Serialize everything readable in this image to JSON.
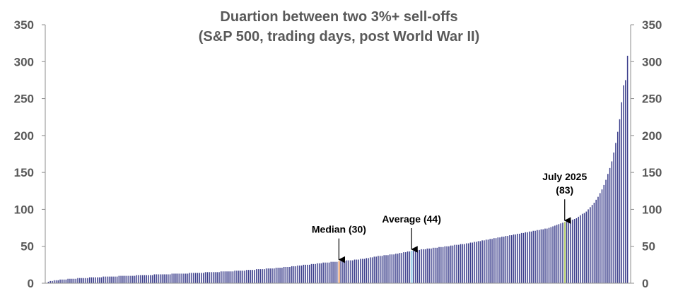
{
  "chart_data": {
    "type": "bar",
    "title": "Duartion between two 3%+ sell-offs",
    "subtitle": "(S&P 500, trading days, post World War II)",
    "xlabel": "",
    "ylabel": "",
    "ylim": [
      0,
      350
    ],
    "yticks": [
      0,
      50,
      100,
      150,
      200,
      250,
      300,
      350
    ],
    "secondary_y_axis": true,
    "grid": false,
    "sorted_ascending": true,
    "series": [
      {
        "values": [
          2,
          3,
          3,
          4,
          4,
          4,
          5,
          5,
          5,
          5,
          6,
          6,
          6,
          6,
          6,
          7,
          7,
          7,
          7,
          7,
          7,
          8,
          8,
          8,
          8,
          8,
          8,
          8,
          9,
          9,
          9,
          9,
          9,
          9,
          9,
          9,
          10,
          10,
          10,
          10,
          10,
          10,
          10,
          10,
          10,
          11,
          11,
          11,
          11,
          11,
          11,
          11,
          11,
          11,
          12,
          12,
          12,
          12,
          12,
          12,
          12,
          12,
          12,
          13,
          13,
          13,
          13,
          13,
          13,
          13,
          13,
          13,
          14,
          14,
          14,
          14,
          14,
          14,
          14,
          14,
          15,
          15,
          15,
          15,
          15,
          15,
          15,
          15,
          16,
          16,
          16,
          16,
          16,
          16,
          16,
          17,
          17,
          17,
          17,
          17,
          17,
          18,
          18,
          18,
          18,
          18,
          19,
          19,
          19,
          19,
          19,
          20,
          20,
          20,
          20,
          20,
          21,
          21,
          21,
          21,
          22,
          22,
          22,
          22,
          23,
          23,
          23,
          24,
          24,
          24,
          25,
          25,
          25,
          25,
          26,
          26,
          26,
          27,
          27,
          27,
          28,
          28,
          28,
          28,
          29,
          29,
          29,
          29,
          30,
          30,
          30,
          30,
          31,
          31,
          31,
          31,
          32,
          32,
          32,
          33,
          33,
          33,
          34,
          34,
          35,
          35,
          36,
          36,
          37,
          37,
          37,
          38,
          38,
          38,
          39,
          39,
          39,
          40,
          40,
          41,
          41,
          42,
          42,
          43,
          43,
          44,
          44,
          44,
          45,
          45,
          46,
          46,
          46,
          47,
          47,
          47,
          48,
          48,
          48,
          49,
          49,
          49,
          50,
          50,
          50,
          51,
          51,
          52,
          52,
          52,
          53,
          53,
          53,
          54,
          54,
          55,
          55,
          56,
          56,
          57,
          57,
          58,
          58,
          59,
          59,
          60,
          60,
          61,
          61,
          62,
          62,
          63,
          63,
          64,
          64,
          65,
          65,
          66,
          66,
          67,
          67,
          68,
          68,
          69,
          69,
          70,
          70,
          71,
          71,
          72,
          72,
          73,
          73,
          74,
          74,
          75,
          76,
          77,
          78,
          79,
          80,
          81,
          82,
          83,
          83,
          84,
          85,
          86,
          87,
          88,
          90,
          92,
          94,
          95,
          97,
          100,
          103,
          106,
          109,
          113,
          117,
          122,
          127,
          133,
          140,
          148,
          156,
          165,
          177,
          190,
          205,
          222,
          245,
          268,
          275,
          308
        ]
      }
    ],
    "annotations": [
      {
        "label_lines": [
          "Median (30)"
        ],
        "value": 30,
        "highlight_color": "#e8a070"
      },
      {
        "label_lines": [
          "Average (44)"
        ],
        "value": 44,
        "highlight_color": "#8fc8e8"
      },
      {
        "label_lines": [
          "July 2025",
          "(83)"
        ],
        "value": 83,
        "highlight_color": "#b8d070"
      }
    ],
    "colors": {
      "bar": "#3c3f8c",
      "axis": "#8c8c8c",
      "tick_text": "#595959",
      "title": "#595959",
      "annotation": "#000000"
    }
  }
}
